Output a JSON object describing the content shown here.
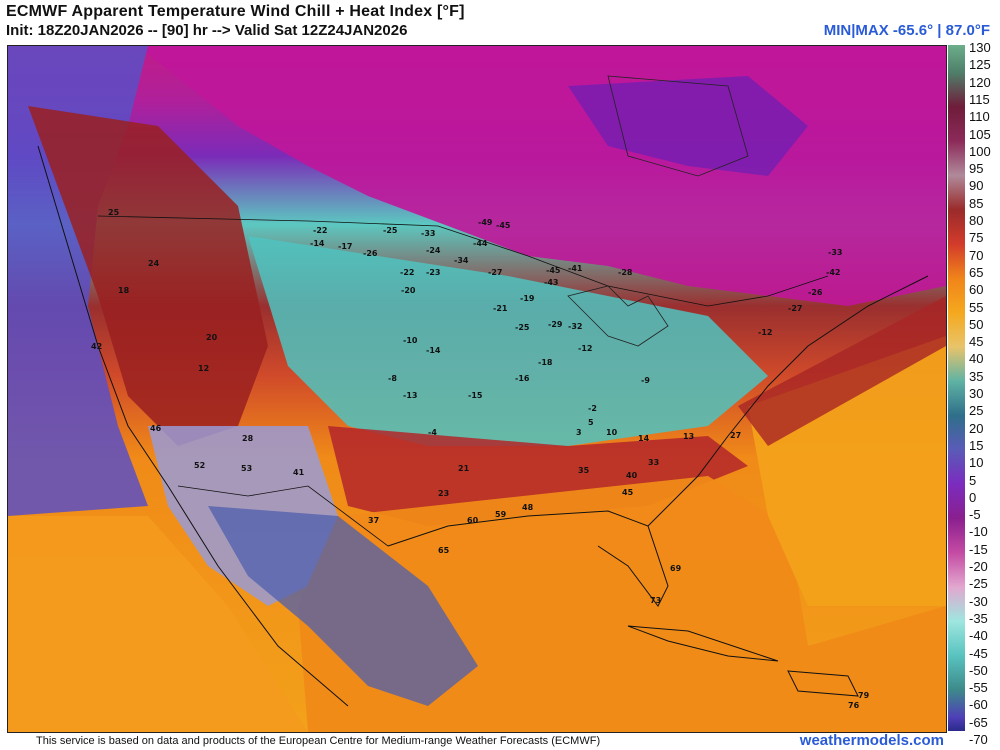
{
  "header": {
    "title": "ECMWF Apparent Temperature Wind Chill + Heat Index [°F]",
    "subtitle": "Init: 18Z20JAN2026 -- [90] hr --> Valid Sat 12Z24JAN2026",
    "minmax": "MIN|MAX -65.6° | 87.0°F"
  },
  "colorbar": {
    "labels": [
      "130",
      "125",
      "120",
      "115",
      "110",
      "105",
      "100",
      "95",
      "90",
      "85",
      "80",
      "75",
      "70",
      "65",
      "60",
      "55",
      "50",
      "45",
      "40",
      "35",
      "30",
      "25",
      "20",
      "15",
      "10",
      "5",
      "0",
      "-5",
      "-10",
      "-15",
      "-20",
      "-25",
      "-30",
      "-35",
      "-40",
      "-45",
      "-50",
      "-55",
      "-60",
      "-65",
      "-70"
    ]
  },
  "footer": {
    "attribution": "This service is based on data and products of the European Centre for Medium-range Weather Forecasts (ECMWF)",
    "site": "weathermodels.com"
  },
  "map_labels": [
    {
      "t": "-22"
    },
    {
      "t": "-14"
    },
    {
      "t": "-17"
    },
    {
      "t": "-26"
    },
    {
      "t": "-25"
    },
    {
      "t": "-33"
    },
    {
      "t": "-49"
    },
    {
      "t": "-45"
    },
    {
      "t": "-44"
    },
    {
      "t": "-34"
    },
    {
      "t": "-24"
    },
    {
      "t": "-22"
    },
    {
      "t": "-23"
    },
    {
      "t": "-20"
    },
    {
      "t": "-27"
    },
    {
      "t": "-45"
    },
    {
      "t": "-43"
    },
    {
      "t": "-41"
    },
    {
      "t": "-28"
    },
    {
      "t": "-19"
    },
    {
      "t": "-21"
    },
    {
      "t": "-25"
    },
    {
      "t": "-29"
    },
    {
      "t": "-32"
    },
    {
      "t": "-10"
    },
    {
      "t": "-14"
    },
    {
      "t": "-18"
    },
    {
      "t": "-16"
    },
    {
      "t": "-12"
    },
    {
      "t": "-13"
    },
    {
      "t": "-15"
    },
    {
      "t": "-9"
    },
    {
      "t": "3"
    },
    {
      "t": "5"
    },
    {
      "t": "10"
    },
    {
      "t": "14"
    },
    {
      "t": "13"
    },
    {
      "t": "27"
    },
    {
      "t": "33"
    },
    {
      "t": "35"
    },
    {
      "t": "40"
    },
    {
      "t": "45"
    },
    {
      "t": "48"
    },
    {
      "t": "59"
    },
    {
      "t": "60"
    },
    {
      "t": "65"
    },
    {
      "t": "69"
    },
    {
      "t": "73"
    },
    {
      "t": "79"
    },
    {
      "t": "76"
    },
    {
      "t": "21"
    },
    {
      "t": "23"
    },
    {
      "t": "28"
    },
    {
      "t": "37"
    },
    {
      "t": "53"
    },
    {
      "t": "52"
    },
    {
      "t": "-42"
    },
    {
      "t": "-33"
    },
    {
      "t": "-27"
    },
    {
      "t": "-26"
    },
    {
      "t": "-12"
    },
    {
      "t": "25"
    },
    {
      "t": "24"
    },
    {
      "t": "18"
    },
    {
      "t": "42"
    },
    {
      "t": "46"
    },
    {
      "t": "41"
    },
    {
      "t": "20"
    },
    {
      "t": "12"
    },
    {
      "t": "-8"
    },
    {
      "t": "-4"
    },
    {
      "t": "-2"
    }
  ]
}
